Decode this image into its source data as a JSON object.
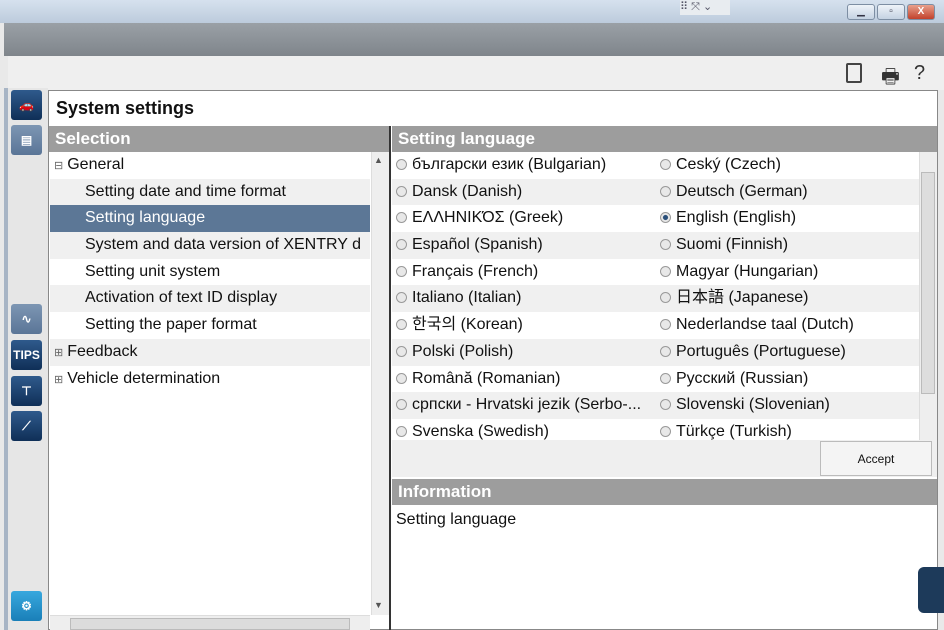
{
  "window": {
    "minimize": "▁",
    "maximize": "▫",
    "close": "X"
  },
  "toolbar": {
    "book_icon": "book-icon",
    "print_icon": "print-icon",
    "help": "?"
  },
  "sidebar": {
    "tips": "TIPS"
  },
  "page_title": "System settings",
  "selection": {
    "header": "Selection",
    "items": [
      {
        "label": "General",
        "expander": "⊟",
        "level": 0
      },
      {
        "label": "Setting date and time format",
        "level": 1
      },
      {
        "label": "Setting language",
        "level": 1,
        "selected": true
      },
      {
        "label": "System and data version of XENTRY d",
        "level": 1
      },
      {
        "label": "Setting unit system",
        "level": 1
      },
      {
        "label": "Activation of text ID display",
        "level": 1
      },
      {
        "label": "Setting the paper format",
        "level": 1
      },
      {
        "label": "Feedback",
        "expander": "⊞",
        "level": 0
      },
      {
        "label": "Vehicle determination",
        "expander": "⊞",
        "level": 0
      }
    ]
  },
  "language": {
    "header": "Setting language",
    "selected": "English (English)",
    "rows": [
      [
        "български език (Bulgarian)",
        "Ceský (Czech)"
      ],
      [
        "Dansk (Danish)",
        "Deutsch (German)"
      ],
      [
        "ΕΛΛΗΝΙΚΌΣ (Greek)",
        "English (English)"
      ],
      [
        "Español (Spanish)",
        "Suomi (Finnish)"
      ],
      [
        "Français (French)",
        "Magyar (Hungarian)"
      ],
      [
        "Italiano (Italian)",
        "日本語 (Japanese)"
      ],
      [
        "한국의 (Korean)",
        "Nederlandse taal (Dutch)"
      ],
      [
        "Polski (Polish)",
        "Português (Portuguese)"
      ],
      [
        "Română (Romanian)",
        "Русский (Russian)"
      ],
      [
        "српски - Hrvatski jezik (Serbo-...",
        "Slovenski (Slovenian)"
      ],
      [
        "Svenska (Swedish)",
        "Türkçe (Turkish)"
      ]
    ],
    "accept": "Accept"
  },
  "information": {
    "header": "Information",
    "text": "Setting language"
  }
}
